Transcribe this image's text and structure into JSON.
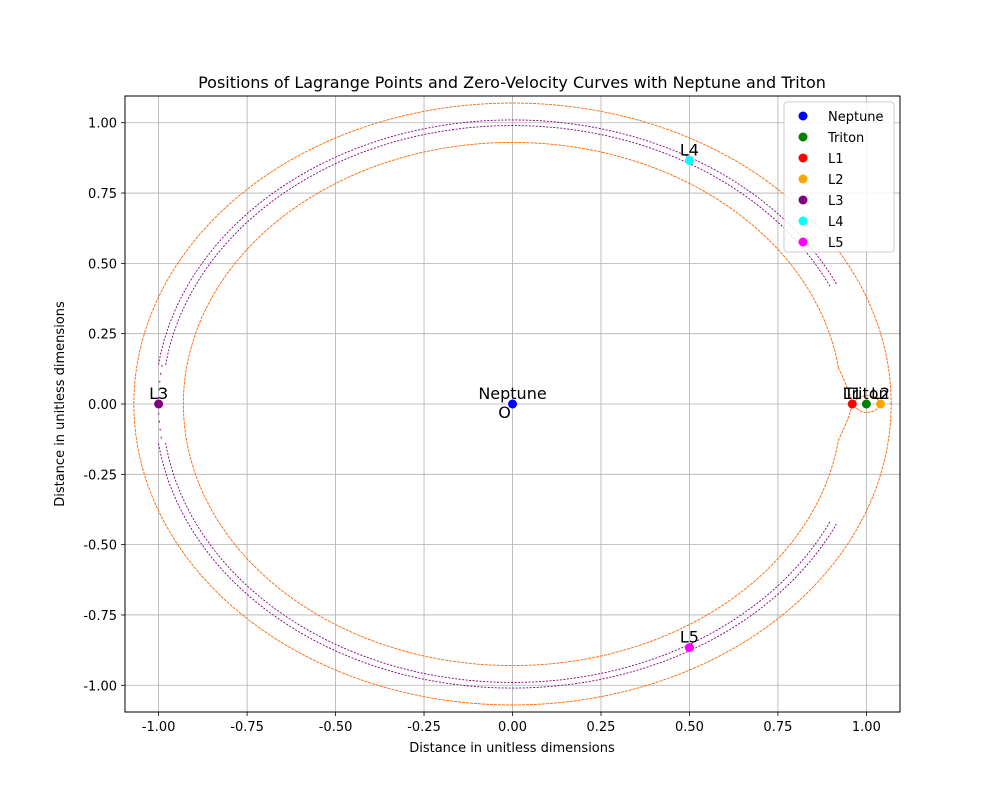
{
  "chart_data": {
    "type": "scatter",
    "title": "Positions of Lagrange Points and Zero-Velocity Curves with Neptune and Triton",
    "xlabel": "Distance in unitless dimensions",
    "ylabel": "Distance in unitless dimensions",
    "xlim": [
      -1.095,
      1.095
    ],
    "ylim": [
      -1.095,
      1.095
    ],
    "x_ticks": [
      "-1.00",
      "-0.75",
      "-0.50",
      "-0.25",
      "0.00",
      "0.25",
      "0.50",
      "0.75",
      "1.00"
    ],
    "x_tick_values": [
      -1.0,
      -0.75,
      -0.5,
      -0.25,
      0.0,
      0.25,
      0.5,
      0.75,
      1.0
    ],
    "y_ticks": [
      "-1.00",
      "-0.75",
      "-0.50",
      "-0.25",
      "0.00",
      "0.25",
      "0.50",
      "0.75",
      "1.00"
    ],
    "y_tick_values": [
      -1.0,
      -0.75,
      -0.5,
      -0.25,
      0.0,
      0.25,
      0.5,
      0.75,
      1.0
    ],
    "grid": true,
    "legend_position": "top-right",
    "points": [
      {
        "name": "Neptune",
        "x": 0.0,
        "y": 0.0,
        "color": "#0000ff",
        "label": "Neptune"
      },
      {
        "name": "Triton",
        "x": 1.0,
        "y": 0.0,
        "color": "#008000",
        "label": "Triton"
      },
      {
        "name": "L1",
        "x": 0.96,
        "y": 0.0,
        "color": "#ff0000",
        "label": "L1"
      },
      {
        "name": "L2",
        "x": 1.04,
        "y": 0.0,
        "color": "#ffa500",
        "label": "L2"
      },
      {
        "name": "L3",
        "x": -1.0,
        "y": 0.0,
        "color": "#800080",
        "label": "L3"
      },
      {
        "name": "L4",
        "x": 0.5,
        "y": 0.866,
        "color": "#00ffff",
        "label": "L4"
      },
      {
        "name": "L5",
        "x": 0.5,
        "y": -0.866,
        "color": "#ff00ff",
        "label": "L5"
      }
    ],
    "origin_label": "O",
    "curves": {
      "outer_orange": {
        "color": "#ff6600",
        "rx": 1.07,
        "ry": 1.07
      },
      "inner_orange": {
        "color": "#ff6600",
        "rx": 0.93,
        "ry": 0.93
      },
      "purple_outer": {
        "color": "#800080",
        "r": 1.01
      },
      "purple_inner": {
        "color": "#800080",
        "r": 0.99
      }
    }
  }
}
